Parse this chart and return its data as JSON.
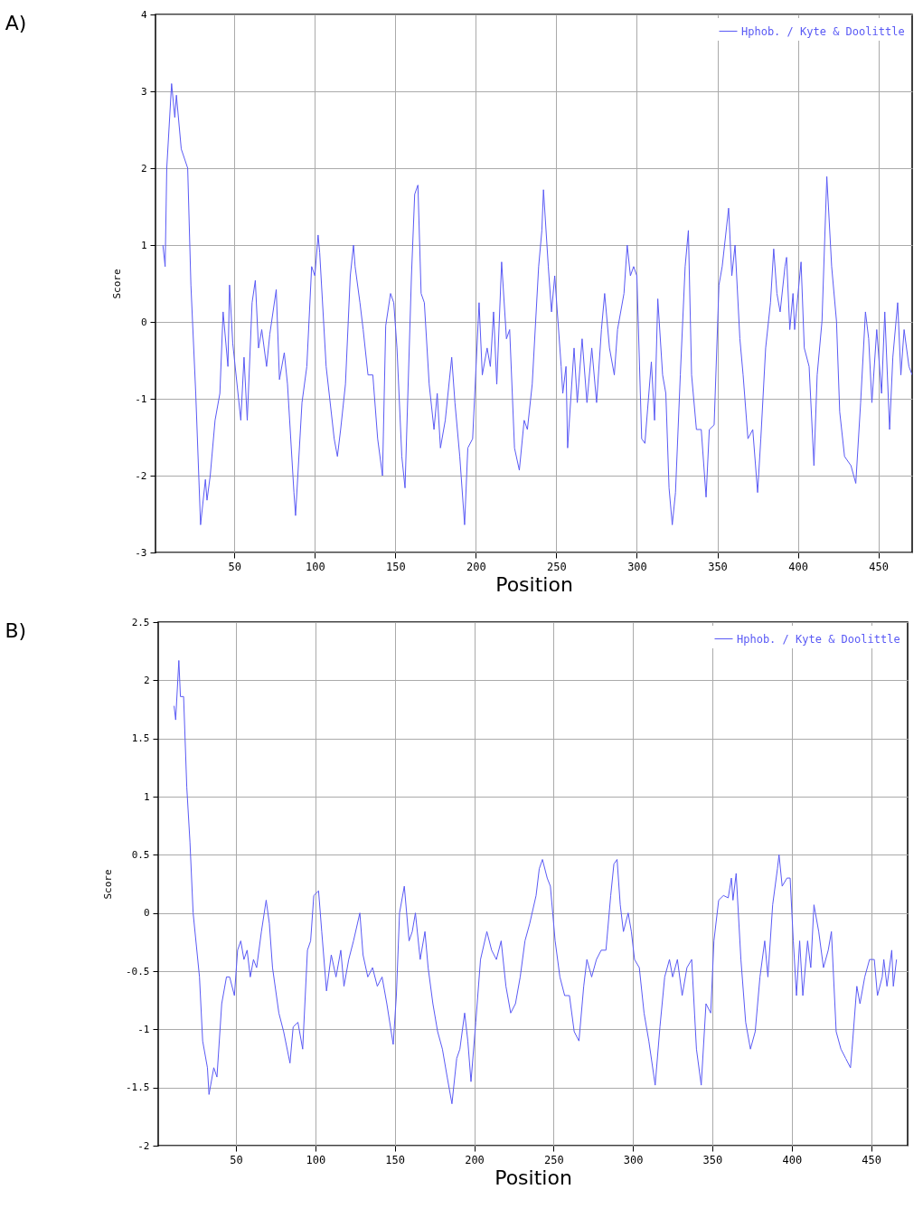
{
  "chart_data": [
    {
      "type": "line",
      "title": "A)",
      "xlabel": "Position",
      "ylabel": "Score",
      "xlim": [
        1,
        471
      ],
      "xticks": [
        50,
        100,
        150,
        200,
        250,
        300,
        350,
        400,
        450
      ],
      "ylim": [
        -3,
        4
      ],
      "yticks": [
        -3,
        -2,
        -1,
        0,
        1,
        2,
        3,
        4
      ],
      "grid": true,
      "legend": "top right",
      "x": [
        5.6,
        7,
        8,
        11,
        13,
        14,
        17,
        21,
        23,
        26,
        29,
        32,
        33,
        35,
        38,
        41,
        43,
        46,
        47,
        49,
        54,
        56,
        58,
        61,
        63,
        65,
        67,
        70,
        72,
        76,
        78,
        81,
        83,
        87,
        88,
        92,
        95,
        98,
        100,
        102,
        103,
        107,
        112,
        114,
        116,
        119,
        122,
        124,
        125,
        128,
        130,
        133,
        136,
        139,
        142,
        144,
        147,
        149,
        151,
        154,
        156,
        160,
        162,
        164,
        166,
        168,
        171,
        174,
        176,
        178,
        181,
        185,
        187,
        190,
        193,
        195,
        198,
        202,
        204,
        207,
        209,
        211,
        213,
        216,
        219,
        221,
        224,
        227,
        230,
        232,
        235,
        239,
        241,
        242,
        245,
        247,
        249,
        253,
        254,
        256,
        257,
        261,
        263,
        266,
        269,
        272,
        275,
        278,
        280,
        283,
        286,
        288,
        292,
        294,
        296,
        298,
        300,
        303,
        305,
        309,
        311,
        313,
        316,
        318,
        320,
        322,
        324,
        327,
        330,
        332,
        334,
        337,
        340,
        343,
        345,
        348,
        351,
        353,
        357,
        359,
        361,
        364,
        366,
        369,
        372,
        375,
        377,
        380,
        383,
        385,
        387,
        389,
        392,
        393,
        395,
        397,
        398,
        402,
        404,
        407,
        410,
        412,
        415,
        418,
        421,
        424,
        426,
        429,
        433,
        436,
        439,
        442,
        444,
        446,
        449,
        452,
        454,
        457,
        459,
        462,
        464,
        466,
        469,
        471
      ],
      "series": [
        {
          "name": "Hphob. / Kyte & Doolittle",
          "color": "#5a5af5",
          "values": [
            1.0,
            0.72,
            2.0,
            3.1,
            2.66,
            2.95,
            2.25,
            2.0,
            0.48,
            -0.93,
            -2.64,
            -2.05,
            -2.32,
            -2.0,
            -1.28,
            -0.93,
            0.13,
            -0.58,
            0.48,
            -0.28,
            -1.28,
            -0.46,
            -1.28,
            0.25,
            0.54,
            -0.34,
            -0.1,
            -0.58,
            -0.16,
            0.42,
            -0.75,
            -0.4,
            -0.81,
            -2.22,
            -2.52,
            -1.05,
            -0.58,
            0.72,
            0.6,
            1.13,
            0.9,
            -0.58,
            -1.52,
            -1.75,
            -1.4,
            -0.81,
            0.6,
            1.0,
            0.72,
            0.25,
            -0.1,
            -0.69,
            -0.69,
            -1.52,
            -2.0,
            -0.05,
            0.37,
            0.25,
            -0.34,
            -1.75,
            -2.16,
            0.6,
            1.66,
            1.78,
            0.37,
            0.25,
            -0.81,
            -1.4,
            -0.93,
            -1.64,
            -1.28,
            -0.46,
            -1.05,
            -1.75,
            -2.64,
            -1.64,
            -1.52,
            0.25,
            -0.69,
            -0.34,
            -0.58,
            0.13,
            -0.81,
            0.78,
            -0.22,
            -0.1,
            -1.64,
            -1.93,
            -1.28,
            -1.4,
            -0.81,
            0.72,
            1.19,
            1.72,
            0.72,
            0.13,
            0.6,
            -0.58,
            -0.93,
            -0.58,
            -1.64,
            -0.34,
            -1.05,
            -0.22,
            -1.05,
            -0.34,
            -1.05,
            -0.1,
            0.37,
            -0.34,
            -0.69,
            -0.1,
            0.37,
            1.0,
            0.6,
            0.72,
            0.6,
            -1.52,
            -1.58,
            -0.52,
            -1.28,
            0.3,
            -0.69,
            -0.93,
            -2.16,
            -2.64,
            -2.22,
            -0.69,
            0.72,
            1.19,
            -0.69,
            -1.4,
            -1.4,
            -2.28,
            -1.4,
            -1.34,
            0.48,
            0.72,
            1.48,
            0.6,
            1.0,
            -0.22,
            -0.69,
            -1.52,
            -1.4,
            -2.22,
            -1.52,
            -0.34,
            0.25,
            0.95,
            0.37,
            0.13,
            0.72,
            0.84,
            -0.1,
            0.37,
            -0.1,
            0.78,
            -0.34,
            -0.58,
            -1.87,
            -0.69,
            0.01,
            1.89,
            0.72,
            0.01,
            -1.17,
            -1.75,
            -1.87,
            -2.1,
            -1.05,
            0.13,
            -0.22,
            -1.05,
            -0.1,
            -0.93,
            0.13,
            -1.4,
            -0.46,
            0.25,
            -0.69,
            -0.1,
            -0.58,
            -0.69
          ]
        }
      ]
    },
    {
      "type": "line",
      "title": "B)",
      "xlabel": "Position",
      "ylabel": "Score",
      "xlim": [
        1,
        473
      ],
      "xticks": [
        50,
        100,
        150,
        200,
        250,
        300,
        350,
        400,
        450
      ],
      "ylim": [
        -2,
        2.5
      ],
      "yticks": [
        -2,
        -1.5,
        -1,
        -0.5,
        0,
        0.5,
        1,
        1.5,
        2,
        2.5
      ],
      "grid": true,
      "legend": "top right",
      "x": [
        11,
        12,
        14,
        15,
        17,
        19,
        21,
        23,
        27,
        29,
        32,
        33,
        36,
        38,
        41,
        44,
        46,
        49,
        51,
        53,
        55,
        57,
        59,
        61,
        63,
        66,
        69,
        71,
        73,
        77,
        80,
        84,
        86,
        89,
        92,
        95,
        97,
        99,
        102,
        104,
        107,
        110,
        113,
        116,
        118,
        121,
        124,
        128,
        130,
        133,
        136,
        139,
        142,
        145,
        149,
        151,
        153,
        156,
        159,
        161,
        163,
        166,
        169,
        171,
        174,
        177,
        180,
        183,
        186,
        189,
        191,
        194,
        196,
        198,
        201,
        204,
        208,
        211,
        214,
        217,
        220,
        223,
        226,
        229,
        232,
        235,
        239,
        241,
        243,
        246,
        248,
        251,
        254,
        257,
        260,
        263,
        266,
        269,
        271,
        274,
        277,
        280,
        283,
        286,
        288,
        290,
        292,
        294,
        297,
        299,
        301,
        304,
        307,
        310,
        314,
        317,
        320,
        323,
        325,
        328,
        331,
        334,
        337,
        340,
        343,
        346,
        349,
        351,
        354,
        357,
        360,
        362,
        363,
        365,
        368,
        371,
        374,
        377,
        380,
        383,
        385,
        388,
        391,
        392,
        394,
        397,
        399,
        401,
        403,
        405,
        407,
        410,
        412,
        414,
        417,
        420,
        423,
        425,
        428,
        431,
        434,
        437,
        438,
        441,
        443,
        446,
        449,
        452,
        454,
        457,
        458,
        460,
        463,
        464,
        466
      ],
      "series": [
        {
          "name": "Hphob. / Kyte & Doolittle",
          "color": "#5a5af5",
          "values": [
            1.78,
            1.66,
            2.17,
            1.86,
            1.86,
            1.08,
            0.61,
            0.0,
            -0.55,
            -1.1,
            -1.33,
            -1.56,
            -1.33,
            -1.41,
            -0.78,
            -0.55,
            -0.55,
            -0.71,
            -0.32,
            -0.24,
            -0.4,
            -0.32,
            -0.55,
            -0.4,
            -0.47,
            -0.16,
            0.11,
            -0.09,
            -0.47,
            -0.86,
            -1.02,
            -1.29,
            -0.98,
            -0.94,
            -1.17,
            -0.32,
            -0.24,
            0.15,
            0.19,
            -0.16,
            -0.67,
            -0.36,
            -0.55,
            -0.32,
            -0.63,
            -0.4,
            -0.24,
            0.0,
            -0.36,
            -0.55,
            -0.47,
            -0.63,
            -0.55,
            -0.78,
            -1.13,
            -0.71,
            0.0,
            0.23,
            -0.24,
            -0.16,
            0.0,
            -0.4,
            -0.16,
            -0.47,
            -0.78,
            -1.02,
            -1.17,
            -1.41,
            -1.64,
            -1.25,
            -1.17,
            -0.86,
            -1.1,
            -1.45,
            -0.94,
            -0.4,
            -0.16,
            -0.32,
            -0.4,
            -0.24,
            -0.63,
            -0.86,
            -0.78,
            -0.55,
            -0.24,
            -0.09,
            0.15,
            0.38,
            0.46,
            0.3,
            0.23,
            -0.24,
            -0.55,
            -0.71,
            -0.71,
            -1.02,
            -1.1,
            -0.63,
            -0.4,
            -0.55,
            -0.4,
            -0.32,
            -0.32,
            0.15,
            0.42,
            0.46,
            0.07,
            -0.16,
            0.0,
            -0.16,
            -0.4,
            -0.47,
            -0.86,
            -1.1,
            -1.48,
            -0.98,
            -0.55,
            -0.4,
            -0.55,
            -0.4,
            -0.71,
            -0.47,
            -0.4,
            -1.17,
            -1.48,
            -0.78,
            -0.86,
            -0.24,
            0.11,
            0.15,
            0.13,
            0.3,
            0.11,
            0.34,
            -0.4,
            -0.94,
            -1.17,
            -1.02,
            -0.55,
            -0.24,
            -0.55,
            0.07,
            0.38,
            0.5,
            0.23,
            0.3,
            0.3,
            -0.24,
            -0.71,
            -0.24,
            -0.71,
            -0.24,
            -0.47,
            0.07,
            -0.16,
            -0.47,
            -0.32,
            -0.16,
            -1.02,
            -1.17,
            -1.25,
            -1.33,
            -1.17,
            -0.63,
            -0.78,
            -0.55,
            -0.4,
            -0.4,
            -0.71,
            -0.55,
            -0.4,
            -0.63,
            -0.32,
            -0.63,
            -0.4
          ]
        }
      ]
    }
  ]
}
